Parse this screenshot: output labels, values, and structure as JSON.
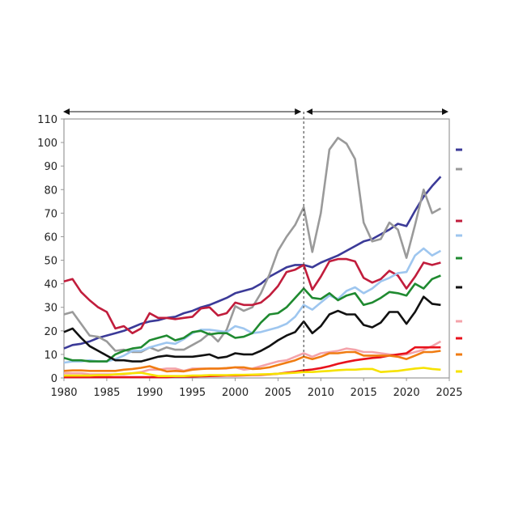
{
  "chart_data": {
    "type": "line",
    "title": "",
    "xlabel": "",
    "ylabel": "",
    "xlim": [
      1980,
      2025
    ],
    "ylim": [
      0,
      110
    ],
    "x_ticks": [
      1980,
      1985,
      1990,
      1995,
      2000,
      2005,
      2010,
      2015,
      2020,
      2025
    ],
    "y_ticks": [
      0,
      10,
      20,
      30,
      40,
      50,
      60,
      70,
      80,
      90,
      100,
      110
    ],
    "grid": false,
    "legend_placement": "right",
    "annotations": {
      "divider_year": 2008,
      "period_arrows": [
        [
          1980,
          2008
        ],
        [
          2008,
          2025
        ]
      ]
    },
    "x_start": 1980,
    "series": [
      {
        "name": "",
        "color": "#3b3a98",
        "values": [
          12.5,
          14,
          14.5,
          15.5,
          17,
          18,
          19,
          20,
          21.5,
          23,
          24,
          24.5,
          25.5,
          26,
          27.5,
          28.5,
          30,
          31,
          32.5,
          34,
          36,
          37,
          38,
          40,
          43,
          45,
          47,
          48,
          48,
          47,
          49,
          50.5,
          52,
          54,
          56,
          58,
          59,
          61,
          63,
          65.5,
          64.5,
          71,
          77,
          81.5,
          85.5
        ]
      },
      {
        "name": "",
        "color": "#9a9a9a",
        "values": [
          27,
          28,
          23,
          18,
          17.5,
          15.5,
          11.5,
          12,
          11,
          11,
          13,
          11.5,
          13,
          12,
          12,
          14,
          16,
          19,
          15.5,
          20.5,
          30.5,
          28.5,
          30,
          36,
          44,
          54,
          60,
          65,
          72.5,
          53.5,
          70,
          97,
          102,
          99.5,
          93,
          66,
          58,
          59,
          66,
          63,
          51,
          65,
          80,
          70,
          72
        ]
      },
      {
        "name": "",
        "color": "#c11d3c",
        "values": [
          41,
          42,
          36.5,
          33,
          30,
          28,
          21,
          22,
          19,
          21,
          27.5,
          25.5,
          25.5,
          25,
          25.5,
          26,
          29.5,
          30,
          26.5,
          27.5,
          32,
          31,
          31,
          32,
          35,
          39,
          45,
          46,
          48,
          37.5,
          43,
          49.5,
          50.5,
          50.5,
          49.5,
          42.5,
          40.5,
          42,
          45.5,
          43.5,
          38,
          43,
          49,
          48,
          49
        ]
      },
      {
        "name": "",
        "color": "#9ec6ef",
        "values": [
          6.5,
          7,
          7,
          7.5,
          7,
          7,
          8,
          9.5,
          11.5,
          11.5,
          13,
          14,
          15,
          14.5,
          16.5,
          19,
          20.5,
          20.5,
          20,
          19.5,
          22,
          21,
          19,
          19.5,
          20.5,
          21.5,
          23,
          26,
          31,
          29,
          32,
          35,
          33.5,
          37,
          38.5,
          36,
          38,
          41,
          42.5,
          44.5,
          45,
          52,
          55,
          52,
          54
        ]
      },
      {
        "name": "",
        "color": "#1f8a30",
        "values": [
          8.5,
          7.5,
          7.5,
          7,
          7,
          7,
          10,
          11.5,
          12.5,
          13,
          16,
          17,
          18,
          16,
          17,
          19.5,
          20,
          18.5,
          19,
          19,
          17,
          17.5,
          19,
          23.5,
          27,
          27.5,
          30,
          34,
          38,
          34,
          33.5,
          36,
          33,
          35,
          36,
          31,
          32,
          34,
          36.5,
          36,
          35,
          40,
          38,
          42,
          43.5
        ]
      },
      {
        "name": "",
        "color": "#111111",
        "values": [
          19.5,
          21,
          17,
          13.5,
          11.5,
          9.5,
          7.5,
          7.5,
          7,
          7,
          8,
          9,
          9.5,
          9,
          9,
          9,
          9.5,
          10,
          8.5,
          9,
          10.5,
          10,
          10,
          11.5,
          13.5,
          16,
          18,
          19.5,
          24,
          19,
          22,
          27,
          28.5,
          27,
          27,
          22.5,
          21.5,
          23.5,
          28,
          28,
          23,
          28,
          34.5,
          31.5,
          31
        ]
      },
      {
        "name": "",
        "color": "#f4a3aa",
        "values": [
          2,
          2,
          2,
          1.5,
          1.5,
          1.5,
          1.5,
          1.5,
          2,
          2.5,
          3.5,
          3.5,
          4,
          4,
          3,
          4,
          4,
          4,
          4,
          4,
          4.5,
          3.5,
          4,
          5,
          6,
          7,
          7.5,
          9,
          10.5,
          9,
          10.5,
          11,
          11.5,
          12.5,
          12,
          11,
          11,
          10.5,
          10,
          9.5,
          10,
          11,
          12,
          13.5,
          15.5
        ]
      },
      {
        "name": "",
        "color": "#e8121c",
        "values": [
          0.3,
          0.3,
          0.3,
          0.3,
          0.3,
          0.3,
          0.3,
          0.3,
          0.3,
          0.3,
          0.3,
          0.3,
          0.3,
          0.5,
          0.5,
          0.6,
          0.7,
          0.8,
          0.9,
          1,
          1,
          1.1,
          1.2,
          1.3,
          1.5,
          1.8,
          2.2,
          2.6,
          3.2,
          3.6,
          4.2,
          5,
          6,
          6.8,
          7.5,
          8,
          8.5,
          8.8,
          9.5,
          10,
          10.5,
          13,
          13,
          13,
          13
        ]
      },
      {
        "name": "",
        "color": "#f07c12",
        "values": [
          3,
          3.2,
          3.2,
          3,
          3,
          3,
          3,
          3.5,
          3.8,
          4.3,
          5,
          3.8,
          2.8,
          3,
          2.8,
          3.5,
          3.8,
          4,
          4,
          4.2,
          4.5,
          4.5,
          3.8,
          4,
          4.5,
          5.5,
          6.5,
          7.5,
          9,
          8,
          9,
          10.5,
          10.5,
          11,
          11,
          9.5,
          9.5,
          9.5,
          9.5,
          9,
          8,
          9.5,
          11,
          11,
          11.5
        ]
      },
      {
        "name": "",
        "color": "#f6e200",
        "values": [
          1,
          1,
          1,
          1,
          1.2,
          1.2,
          1.5,
          1.8,
          2,
          2.2,
          1.5,
          0.8,
          0.8,
          0.8,
          0.8,
          1,
          1,
          1.2,
          1.2,
          1.2,
          1.3,
          1.3,
          1.4,
          1.5,
          1.6,
          1.8,
          2,
          2.2,
          2.5,
          2.5,
          2.8,
          3,
          3.3,
          3.5,
          3.5,
          3.8,
          3.8,
          2.5,
          2.8,
          3,
          3.5,
          4,
          4.3,
          3.8,
          3.5
        ]
      }
    ]
  }
}
